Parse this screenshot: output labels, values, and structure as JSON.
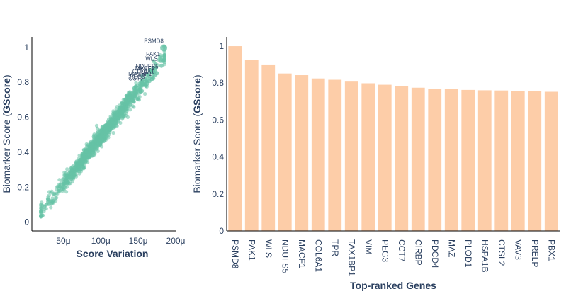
{
  "chart_data": [
    {
      "type": "scatter",
      "xlabel": "Score Variation",
      "ylabel_prefix": "Biomarker Score (",
      "ylabel_bold": "GScore",
      "ylabel_suffix": ")",
      "xlim": [
        8e-06,
        0.0002
      ],
      "ylim": [
        -0.05,
        1.06
      ],
      "x_ticks": [
        {
          "value": 5e-05,
          "label": "50μ"
        },
        {
          "value": 0.0001,
          "label": "100μ"
        },
        {
          "value": 0.00015,
          "label": "150μ"
        },
        {
          "value": 0.0002,
          "label": "200μ"
        }
      ],
      "y_ticks": [
        {
          "value": 0,
          "label": "0"
        },
        {
          "value": 0.2,
          "label": "0.2"
        },
        {
          "value": 0.4,
          "label": "0.4"
        },
        {
          "value": 0.6,
          "label": "0.6"
        },
        {
          "value": 0.8,
          "label": "0.8"
        },
        {
          "value": 1,
          "label": "1"
        }
      ],
      "point_color": "#66c2a5",
      "cloud": {
        "n": 1300,
        "x_range": [
          2e-05,
          0.000185
        ],
        "trend": {
          "slope": 5400,
          "intercept": -0.052
        },
        "spread": 0.025
      },
      "labeled_points": [
        {
          "name": "PSMD8",
          "x": 0.000184,
          "y": 0.997
        },
        {
          "name": "PAK1",
          "x": 0.000183,
          "y": 0.923
        },
        {
          "name": "WLS",
          "x": 0.000181,
          "y": 0.895
        },
        {
          "name": "NDUFS5",
          "x": 0.000175,
          "y": 0.852
        },
        {
          "name": "MACF1",
          "x": 0.000172,
          "y": 0.842
        },
        {
          "name": "COL6A1",
          "x": 0.00017,
          "y": 0.823
        },
        {
          "name": "TPR",
          "x": 0.000168,
          "y": 0.818
        },
        {
          "name": "TAX1BP1",
          "x": 0.000165,
          "y": 0.808
        },
        {
          "name": "PEG3",
          "x": 0.000162,
          "y": 0.792
        },
        {
          "name": "CCT7",
          "x": 0.00016,
          "y": 0.783
        }
      ]
    },
    {
      "type": "bar",
      "xlabel": "Top-ranked Genes",
      "ylabel_prefix": "Biomarker Score (",
      "ylabel_bold": "GScore",
      "ylabel_suffix": ")",
      "ylim": [
        0,
        1.05
      ],
      "y_ticks": [
        {
          "value": 0,
          "label": "0"
        },
        {
          "value": 0.2,
          "label": "0.2"
        },
        {
          "value": 0.4,
          "label": "0.4"
        },
        {
          "value": 0.6,
          "label": "0.6"
        },
        {
          "value": 0.8,
          "label": "0.8"
        },
        {
          "value": 1,
          "label": "1"
        }
      ],
      "bar_color": "#fdcda8",
      "categories": [
        "PSMD8",
        "PAK1",
        "WLS",
        "NDUFS5",
        "MACF1",
        "COL6A1",
        "TPR",
        "TAX1BP1",
        "VIM",
        "PEG3",
        "CCT7",
        "CIRBP",
        "PDCD4",
        "MAZ",
        "PLOD1",
        "HSPA1B",
        "CTSL2",
        "VAV3",
        "PRELP",
        "PBX1"
      ],
      "values": [
        1.0,
        0.925,
        0.897,
        0.852,
        0.843,
        0.825,
        0.818,
        0.808,
        0.799,
        0.791,
        0.782,
        0.775,
        0.77,
        0.768,
        0.763,
        0.761,
        0.76,
        0.757,
        0.755,
        0.753
      ]
    }
  ]
}
